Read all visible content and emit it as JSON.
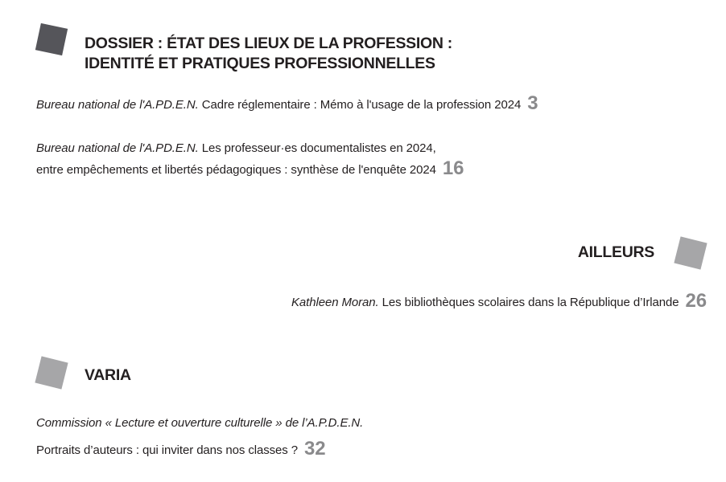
{
  "colors": {
    "dark_square": "#55555a",
    "light_square": "#a6a6a8",
    "page_number": "#8a8a8c",
    "text": "#231f20"
  },
  "sections": [
    {
      "title_lines": [
        "DOSSIER : ÉTAT DES LIEUX DE LA PROFESSION :",
        "IDENTITÉ ET PRATIQUES PROFESSIONNELLES"
      ],
      "entries": [
        {
          "author": "Bureau national de l'A.PD.E.N.",
          "title": "Cadre réglementaire : Mémo à l'usage de la profession 2024",
          "page": "3"
        },
        {
          "author": "Bureau national de l'A.PD.E.N.",
          "title": "Les professeur·es documentalistes en 2024,",
          "title_line2": "entre empêchements et libertés pédagogiques : synthèse de l'enquête 2024",
          "page": "16"
        }
      ]
    },
    {
      "title_lines": [
        "AILLEURS"
      ],
      "entries": [
        {
          "author": "Kathleen Moran.",
          "title": "Les bibliothèques scolaires dans la République d’Irlande",
          "page": "26"
        }
      ]
    },
    {
      "title_lines": [
        "VARIA"
      ],
      "entries": [
        {
          "author": "Commission « Lecture et ouverture culturelle » de l’A.P.D.E.N.",
          "title": "Portraits d’auteurs : qui inviter dans nos classes ?",
          "page": "32"
        }
      ]
    }
  ]
}
